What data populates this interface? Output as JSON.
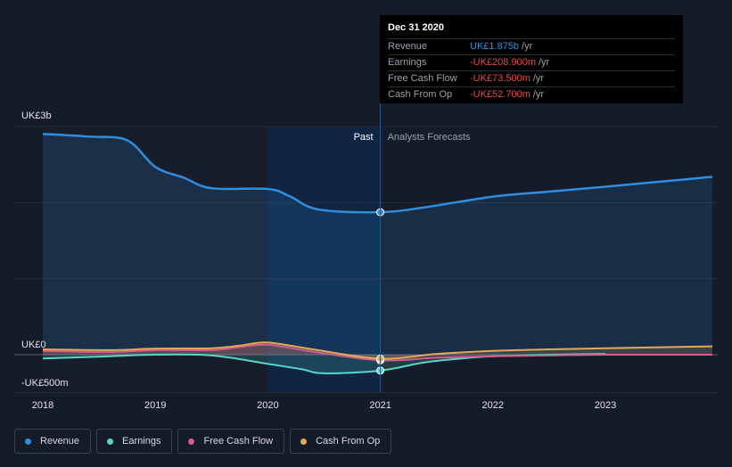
{
  "chart_data": {
    "type": "line",
    "x_start_year": 2018,
    "x_end_year": 2023.95,
    "y_axis_labels": [
      "UK£3b",
      "UK£0",
      "-UK£500m"
    ],
    "x_ticks": [
      "2018",
      "2019",
      "2020",
      "2021",
      "2022",
      "2023"
    ],
    "ylim": [
      -500,
      3000
    ],
    "region_labels": {
      "past": "Past",
      "forecast": "Analysts Forecasts"
    },
    "divider_x": 2021.0,
    "series": [
      {
        "name": "Revenue",
        "color": "#2f8ee0",
        "points": [
          [
            2018.0,
            2905
          ],
          [
            2018.4,
            2870
          ],
          [
            2018.75,
            2820
          ],
          [
            2019.0,
            2470
          ],
          [
            2019.25,
            2330
          ],
          [
            2019.5,
            2190
          ],
          [
            2020.0,
            2180
          ],
          [
            2020.2,
            2080
          ],
          [
            2020.45,
            1910
          ],
          [
            2021.0,
            1875
          ],
          [
            2021.4,
            1940
          ],
          [
            2022.0,
            2080
          ],
          [
            2022.5,
            2145
          ],
          [
            2023.0,
            2210
          ],
          [
            2023.95,
            2340
          ]
        ]
      },
      {
        "name": "Earnings",
        "color": "#58d6c8",
        "points": [
          [
            2018.0,
            -50
          ],
          [
            2018.6,
            -20
          ],
          [
            2019.0,
            0
          ],
          [
            2019.5,
            -10
          ],
          [
            2020.0,
            -120
          ],
          [
            2020.3,
            -190
          ],
          [
            2020.5,
            -245
          ],
          [
            2021.0,
            -209
          ],
          [
            2021.4,
            -100
          ],
          [
            2021.8,
            -40
          ],
          [
            2022.0,
            -20
          ],
          [
            2022.5,
            0
          ],
          [
            2023.0,
            10
          ]
        ]
      },
      {
        "name": "Free Cash Flow",
        "color": "#d35b8e",
        "points": [
          [
            2018.0,
            50
          ],
          [
            2018.6,
            35
          ],
          [
            2019.0,
            60
          ],
          [
            2019.5,
            60
          ],
          [
            2019.75,
            100
          ],
          [
            2020.0,
            130
          ],
          [
            2020.4,
            40
          ],
          [
            2021.0,
            -74
          ],
          [
            2021.5,
            -40
          ],
          [
            2022.0,
            -20
          ],
          [
            2022.5,
            -10
          ],
          [
            2023.0,
            0
          ],
          [
            2023.95,
            0
          ]
        ]
      },
      {
        "name": "Cash From Op",
        "color": "#e3a957",
        "points": [
          [
            2018.0,
            70
          ],
          [
            2018.6,
            60
          ],
          [
            2019.0,
            80
          ],
          [
            2019.5,
            85
          ],
          [
            2019.75,
            120
          ],
          [
            2020.0,
            160
          ],
          [
            2020.4,
            70
          ],
          [
            2021.0,
            -53
          ],
          [
            2021.5,
            10
          ],
          [
            2022.0,
            50
          ],
          [
            2022.5,
            70
          ],
          [
            2023.0,
            85
          ],
          [
            2023.95,
            110
          ]
        ]
      }
    ]
  },
  "tooltip": {
    "date": "Dec 31 2020",
    "rows": [
      {
        "name": "Revenue",
        "value": "UK£1.875b",
        "unit": "/yr",
        "color": "#2f8ee0"
      },
      {
        "name": "Earnings",
        "value": "-UK£208.900m",
        "unit": "/yr",
        "color": "#e64c4c"
      },
      {
        "name": "Free Cash Flow",
        "value": "-UK£73.500m",
        "unit": "/yr",
        "color": "#e64c4c"
      },
      {
        "name": "Cash From Op",
        "value": "-UK£52.700m",
        "unit": "/yr",
        "color": "#e64c4c"
      }
    ]
  },
  "legend": [
    {
      "label": "Revenue",
      "color": "#2f8ee0"
    },
    {
      "label": "Earnings",
      "color": "#58d6c8"
    },
    {
      "label": "Free Cash Flow",
      "color": "#d35b8e"
    },
    {
      "label": "Cash From Op",
      "color": "#e3a957"
    }
  ]
}
